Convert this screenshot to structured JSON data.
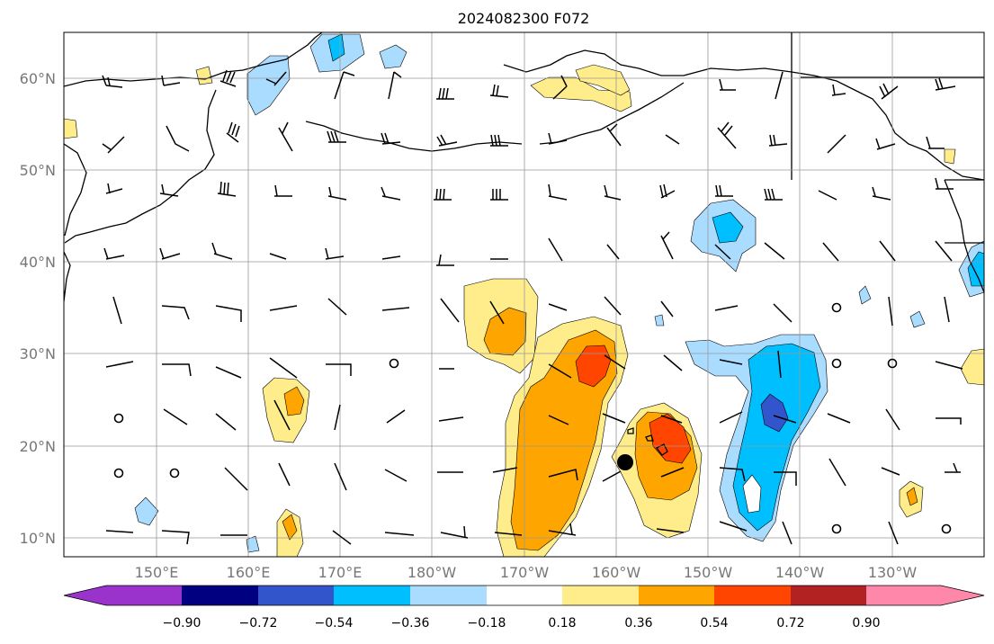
{
  "title": "2024082300 F072",
  "lat_labels": [
    "60°N",
    "50°N",
    "40°N",
    "30°N",
    "20°N",
    "10°N"
  ],
  "lon_labels": [
    "150°E",
    "160°E",
    "170°E",
    "180°W",
    "170°W",
    "160°W",
    "150°W",
    "140°W",
    "130°W"
  ],
  "colorbar": {
    "ticks": [
      "−0.90",
      "−0.72",
      "−0.54",
      "−0.36",
      "−0.18",
      "0.18",
      "0.36",
      "0.54",
      "0.72",
      "0.90"
    ],
    "colors": [
      "#9933cc",
      "#000080",
      "#3355cc",
      "#00bfff",
      "#aadcff",
      "#ffffff",
      "#ffec8b",
      "#ffa500",
      "#ff4500",
      "#b22222",
      "#ff88aa"
    ]
  },
  "colors": {
    "gridline": "#999999",
    "coastline": "#000000",
    "tick_label": "#777777",
    "marker": "#000000"
  },
  "marker": "storm-center-dot"
}
